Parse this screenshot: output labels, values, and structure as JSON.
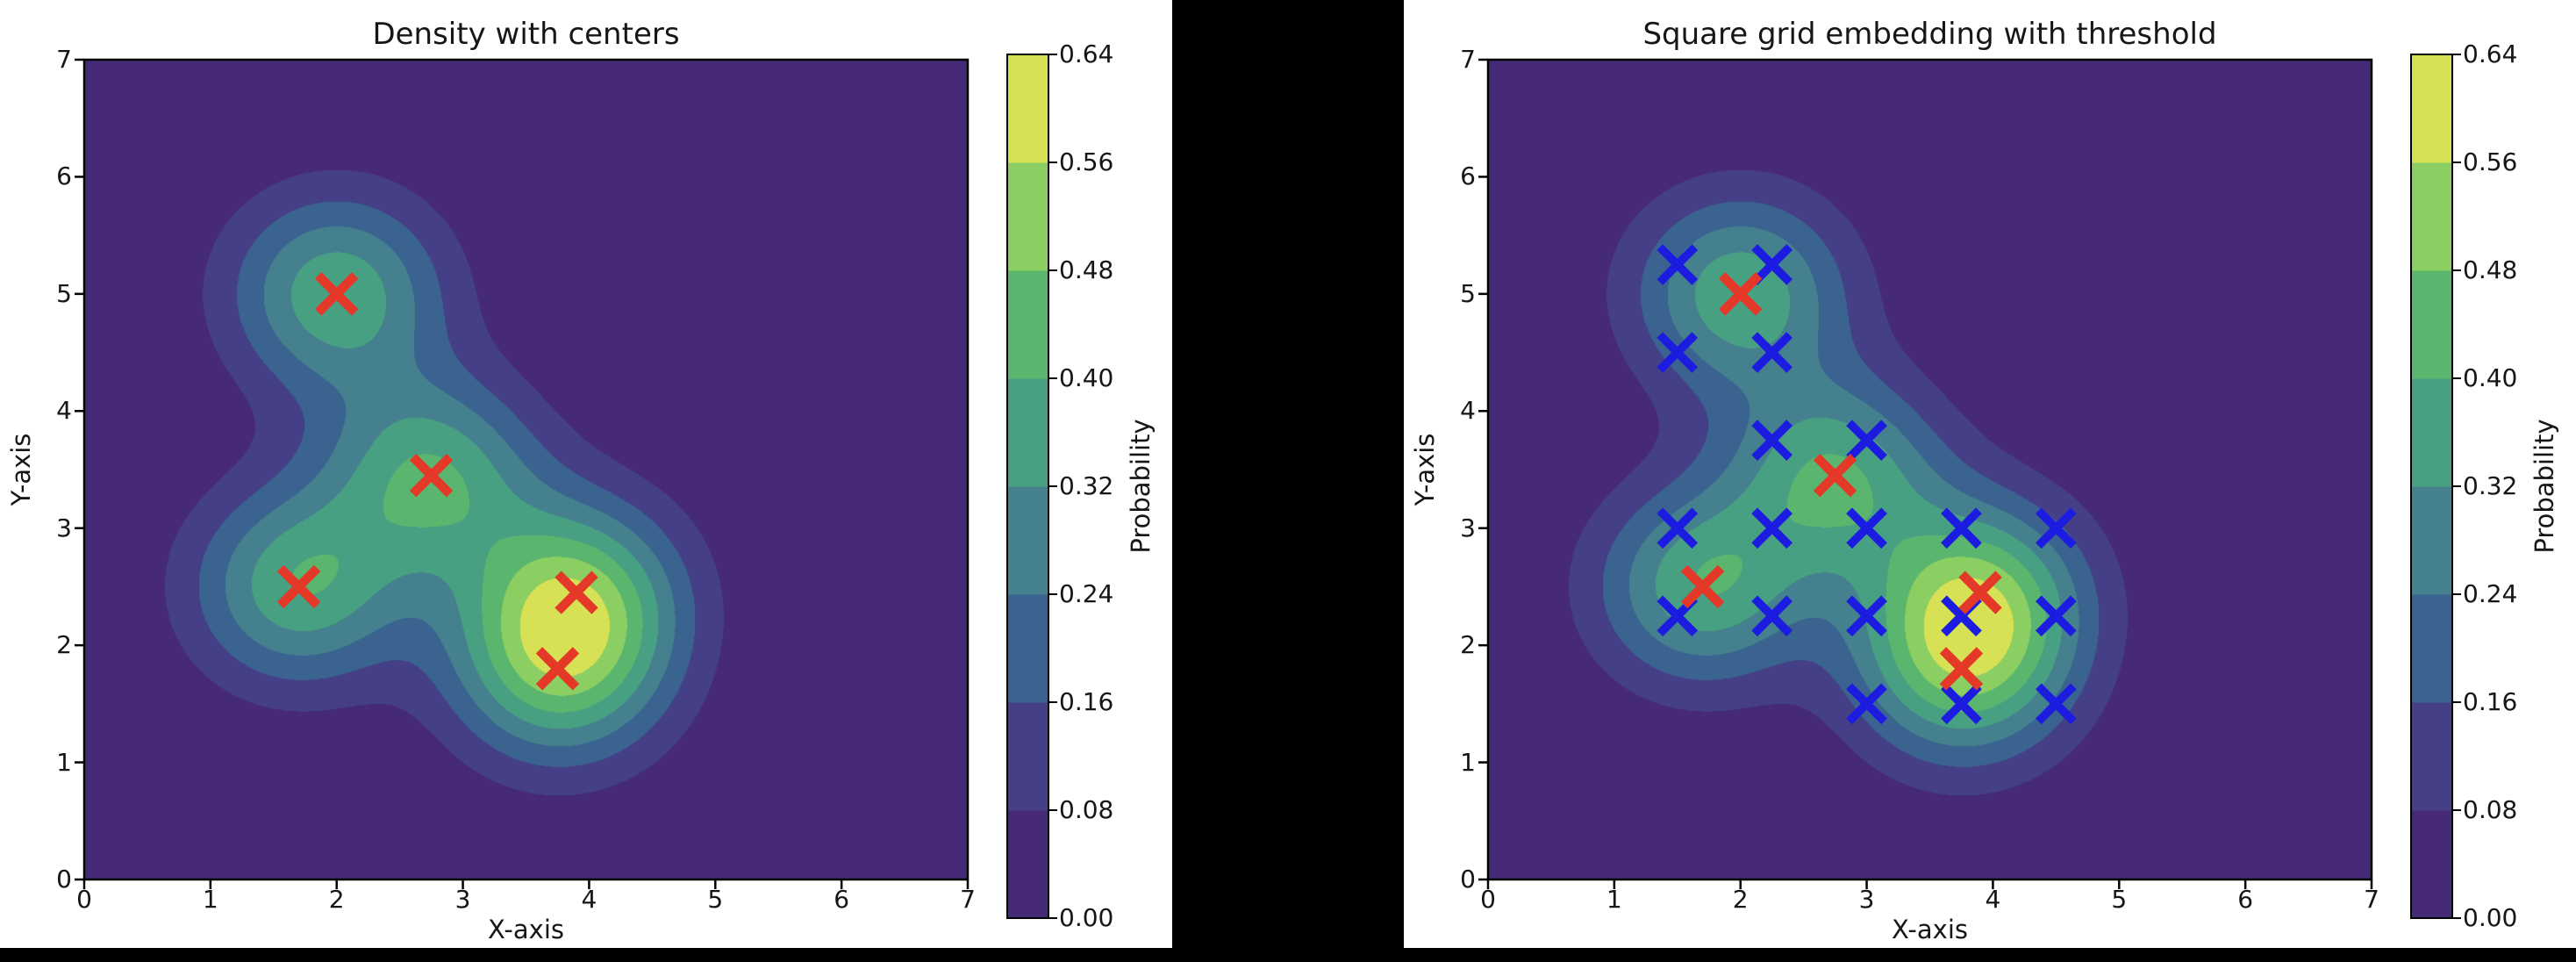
{
  "figure": {
    "background": "#000000",
    "panel_background": "#ffffff",
    "frame_color": "#000000",
    "text_color": "#161616"
  },
  "axes": {
    "x_label": "X-axis",
    "y_label": "Y-axis",
    "x_ticks": [
      "0",
      "1",
      "2",
      "3",
      "4",
      "5",
      "6",
      "7"
    ],
    "y_ticks": [
      "0",
      "1",
      "2",
      "3",
      "4",
      "5",
      "6",
      "7"
    ],
    "xlim": [
      0,
      7
    ],
    "ylim": [
      0,
      7
    ]
  },
  "colorbar": {
    "label": "Probability",
    "ticks": [
      "0.00",
      "0.08",
      "0.16",
      "0.24",
      "0.32",
      "0.40",
      "0.48",
      "0.56",
      "0.64"
    ],
    "band_colors": [
      "#472a75",
      "#443f87",
      "#3a6390",
      "#44808d",
      "#48a083",
      "#5ab56e",
      "#8bce62",
      "#d7e155"
    ]
  },
  "chart_data": [
    {
      "type": "contour-density",
      "title": "Density with centers",
      "x_label": "X-axis",
      "y_label": "Y-axis",
      "xlim": [
        0,
        7
      ],
      "ylim": [
        0,
        7
      ],
      "colormap": "viridis",
      "levels": [
        0.0,
        0.08,
        0.16,
        0.24,
        0.32,
        0.4,
        0.48,
        0.56,
        0.64
      ],
      "centers": [
        [
          2.0,
          5.0
        ],
        [
          2.75,
          3.45
        ],
        [
          1.7,
          2.5
        ],
        [
          3.9,
          2.45
        ],
        [
          3.75,
          1.8
        ]
      ],
      "center_marker": {
        "shape": "x",
        "color": "#e43928"
      },
      "density_model": {
        "kind": "gaussian-mixture",
        "amplitude": 0.38,
        "sigma": 0.6
      }
    },
    {
      "type": "contour-density",
      "title": "Square grid embedding with threshold",
      "x_label": "X-axis",
      "y_label": "Y-axis",
      "xlim": [
        0,
        7
      ],
      "ylim": [
        0,
        7
      ],
      "colormap": "viridis",
      "levels": [
        0.0,
        0.08,
        0.16,
        0.24,
        0.32,
        0.4,
        0.48,
        0.56,
        0.64
      ],
      "centers": [
        [
          2.0,
          5.0
        ],
        [
          2.75,
          3.45
        ],
        [
          1.7,
          2.5
        ],
        [
          3.9,
          2.45
        ],
        [
          3.75,
          1.8
        ]
      ],
      "center_marker": {
        "shape": "x",
        "color": "#e43928"
      },
      "density_model": {
        "kind": "gaussian-mixture",
        "amplitude": 0.38,
        "sigma": 0.6
      },
      "grid_spacing": 0.75,
      "grid_marker": {
        "shape": "x",
        "color": "#1c1ce0"
      },
      "grid_points": [
        [
          1.5,
          5.25
        ],
        [
          2.25,
          5.25
        ],
        [
          1.5,
          4.5
        ],
        [
          2.25,
          4.5
        ],
        [
          2.25,
          3.75
        ],
        [
          3.0,
          3.75
        ],
        [
          1.5,
          3.0
        ],
        [
          2.25,
          3.0
        ],
        [
          3.0,
          3.0
        ],
        [
          3.75,
          3.0
        ],
        [
          4.5,
          3.0
        ],
        [
          1.5,
          2.25
        ],
        [
          2.25,
          2.25
        ],
        [
          3.0,
          2.25
        ],
        [
          3.75,
          2.25
        ],
        [
          4.5,
          2.25
        ],
        [
          3.0,
          1.5
        ],
        [
          3.75,
          1.5
        ],
        [
          4.5,
          1.5
        ]
      ]
    }
  ]
}
